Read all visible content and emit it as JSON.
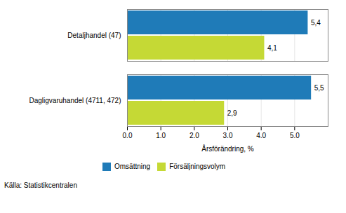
{
  "chart_data": {
    "type": "bar",
    "orientation": "horizontal",
    "categories": [
      "Dagligvaruhandel (4711, 472)",
      "Detaljhandel (47)"
    ],
    "series": [
      {
        "name": "Omsättning",
        "color": "#1F7BB8",
        "values": [
          5.5,
          5.4
        ],
        "value_labels": [
          "5,5",
          "5,4"
        ]
      },
      {
        "name": "Försäljningsvolym",
        "color": "#C5D935",
        "values": [
          2.9,
          4.1
        ],
        "value_labels": [
          "2,9",
          "4,1"
        ]
      }
    ],
    "xlabel": "Årsförändring, %",
    "xlim": [
      0,
      6
    ],
    "xticks": [
      0,
      1,
      2,
      3,
      4,
      5
    ],
    "grid": true,
    "data_labels": true,
    "legend": "bottom",
    "source": "Källa: Statistikcentralen"
  }
}
